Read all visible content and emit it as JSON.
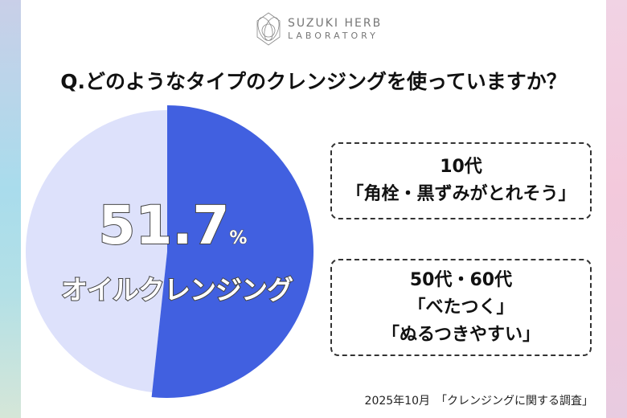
{
  "brand": {
    "line1": "SUZUKI HERB",
    "line2": "LABORATORY"
  },
  "question": "Q.どのようなタイプのクレンジングを使っていますか？",
  "chart_data": {
    "type": "pie",
    "values": [
      51.7,
      48.3
    ],
    "colors": [
      "#4160e0",
      "#dde1fb"
    ],
    "highlight": {
      "value": "51.7",
      "unit": "%",
      "label": "オイルクレンジング"
    }
  },
  "comments": [
    {
      "age": "10代",
      "lines": [
        "「角栓・黒ずみがとれそう」"
      ]
    },
    {
      "age": "50代・60代",
      "lines": [
        "「べたつく」",
        "「ぬるつきやすい」"
      ]
    }
  ],
  "source": "2025年10月　「クレンジングに関する調査」"
}
